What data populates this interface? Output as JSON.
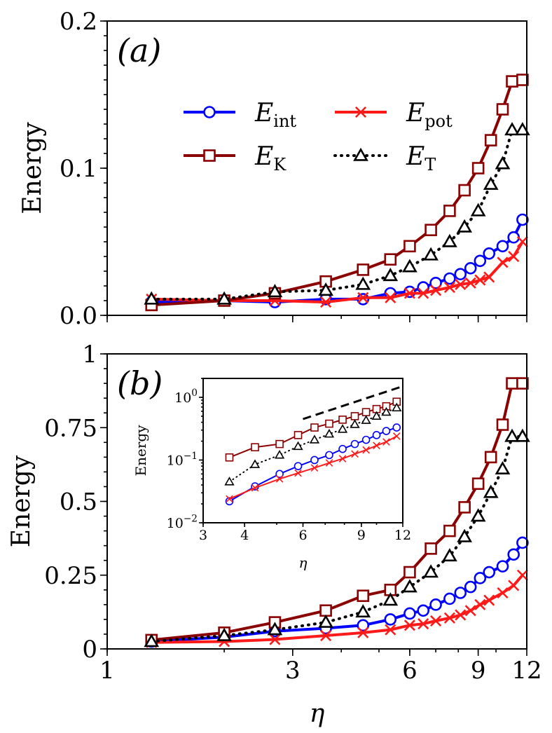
{
  "chart_data": [
    {
      "type": "line",
      "panel_label": "(a)",
      "title": "",
      "xlabel": "η",
      "ylabel": "Energy",
      "xscale": "log",
      "yscale": "linear",
      "xlim": [
        1,
        12
      ],
      "ylim": [
        0,
        0.2
      ],
      "yticks": [
        0.0,
        0.1,
        0.2
      ],
      "ytick_labels": [
        "0.0",
        "0.1",
        "0.2"
      ],
      "xticks": [
        1,
        3,
        6,
        9,
        12
      ],
      "xtick_labels": [],
      "legend_position": "upper-center",
      "series": [
        {
          "key": "eint",
          "name": "E",
          "sub": "int",
          "color": "#0000ff",
          "marker": "circle",
          "dash": "solid",
          "x": [
            1.3,
            2.0,
            2.7,
            3.65,
            4.55,
            5.35,
            6.0,
            6.5,
            7.0,
            7.6,
            8.1,
            8.6,
            9.1,
            9.6,
            10.4,
            11.1,
            11.7
          ],
          "values": [
            0.009,
            0.01,
            0.009,
            0.011,
            0.011,
            0.015,
            0.016,
            0.019,
            0.022,
            0.025,
            0.028,
            0.032,
            0.037,
            0.042,
            0.047,
            0.053,
            0.065
          ]
        },
        {
          "key": "epot",
          "name": "E",
          "sub": "pot",
          "color": "#ff1a1a",
          "marker": "x",
          "dash": "solid",
          "x": [
            1.3,
            2.0,
            2.7,
            3.65,
            4.55,
            5.35,
            6.0,
            6.5,
            7.0,
            7.6,
            8.1,
            8.6,
            9.1,
            9.6,
            10.4,
            11.1,
            11.7
          ],
          "values": [
            0.011,
            0.01,
            0.01,
            0.009,
            0.012,
            0.012,
            0.015,
            0.015,
            0.017,
            0.019,
            0.021,
            0.022,
            0.024,
            0.026,
            0.036,
            0.04,
            0.05
          ]
        },
        {
          "key": "ek",
          "name": "E",
          "sub": "K",
          "color": "#8b0000",
          "marker": "square",
          "dash": "solid",
          "x": [
            1.3,
            2.0,
            2.7,
            3.65,
            4.55,
            5.35,
            6.0,
            6.8,
            7.6,
            8.3,
            9.0,
            9.7,
            10.4,
            11.0,
            11.7
          ],
          "values": [
            0.007,
            0.01,
            0.015,
            0.023,
            0.031,
            0.038,
            0.047,
            0.058,
            0.071,
            0.085,
            0.1,
            0.119,
            0.14,
            0.159,
            0.16
          ]
        },
        {
          "key": "et",
          "name": "E",
          "sub": "T",
          "color": "#000000",
          "marker": "triangle",
          "dash": "dotted",
          "x": [
            1.3,
            2.0,
            2.7,
            3.65,
            4.55,
            5.35,
            6.0,
            6.8,
            7.6,
            8.3,
            9.0,
            9.7,
            10.4,
            11.0,
            11.7
          ],
          "values": [
            0.011,
            0.011,
            0.016,
            0.017,
            0.021,
            0.027,
            0.033,
            0.041,
            0.05,
            0.06,
            0.071,
            0.089,
            0.103,
            0.126,
            0.126
          ]
        }
      ]
    },
    {
      "type": "line",
      "panel_label": "(b)",
      "title": "",
      "xlabel": "η",
      "ylabel": "Energy",
      "xscale": "log",
      "yscale": "linear",
      "xlim": [
        1,
        12
      ],
      "ylim": [
        0,
        1
      ],
      "yticks": [
        0,
        0.25,
        0.5,
        0.75,
        1
      ],
      "ytick_labels": [
        "0",
        "0.25",
        "0.5",
        "0.75",
        "1"
      ],
      "xticks": [
        1,
        3,
        6,
        9,
        12
      ],
      "xtick_labels": [
        "1",
        "3",
        "6",
        "9",
        "12"
      ],
      "series": [
        {
          "key": "eint",
          "color": "#0000ff",
          "marker": "circle",
          "dash": "solid",
          "x": [
            1.3,
            2.0,
            2.7,
            3.65,
            4.55,
            5.35,
            6.0,
            6.5,
            7.0,
            7.6,
            8.1,
            8.6,
            9.1,
            9.6,
            10.4,
            11.1,
            11.7
          ],
          "values": [
            0.025,
            0.04,
            0.06,
            0.07,
            0.08,
            0.1,
            0.12,
            0.13,
            0.15,
            0.17,
            0.19,
            0.21,
            0.24,
            0.26,
            0.28,
            0.32,
            0.36
          ]
        },
        {
          "key": "epot",
          "color": "#ff1a1a",
          "marker": "x",
          "dash": "solid",
          "x": [
            1.3,
            2.0,
            2.7,
            3.65,
            4.55,
            5.35,
            6.0,
            6.5,
            7.0,
            7.6,
            8.1,
            8.6,
            9.1,
            9.6,
            10.4,
            11.1,
            11.7
          ],
          "values": [
            0.022,
            0.025,
            0.032,
            0.045,
            0.055,
            0.065,
            0.08,
            0.085,
            0.095,
            0.105,
            0.115,
            0.13,
            0.15,
            0.165,
            0.19,
            0.215,
            0.25
          ]
        },
        {
          "key": "ek",
          "color": "#8b0000",
          "marker": "square",
          "dash": "solid",
          "x": [
            1.3,
            2.0,
            2.7,
            3.65,
            4.55,
            5.35,
            6.0,
            6.8,
            7.6,
            8.3,
            9.0,
            9.7,
            10.4,
            11.0,
            11.7
          ],
          "values": [
            0.03,
            0.055,
            0.09,
            0.13,
            0.18,
            0.2,
            0.26,
            0.34,
            0.4,
            0.48,
            0.56,
            0.65,
            0.76,
            0.9,
            0.9
          ]
        },
        {
          "key": "et",
          "color": "#000000",
          "marker": "triangle",
          "dash": "dotted",
          "x": [
            1.3,
            2.0,
            2.7,
            3.65,
            4.55,
            5.35,
            6.0,
            6.8,
            7.6,
            8.3,
            9.0,
            9.7,
            10.4,
            11.0,
            11.7
          ],
          "values": [
            0.025,
            0.045,
            0.065,
            0.09,
            0.125,
            0.165,
            0.21,
            0.26,
            0.315,
            0.38,
            0.45,
            0.53,
            0.61,
            0.72,
            0.72
          ]
        }
      ],
      "inset": {
        "xlabel": "η",
        "ylabel": "Energy",
        "xscale": "log",
        "yscale": "log",
        "xlim": [
          3,
          12
        ],
        "ylim": [
          0.01,
          2
        ],
        "xticks": [
          3,
          4,
          6,
          9,
          12
        ],
        "xtick_labels": [
          "3",
          "4",
          "6",
          "9",
          "12"
        ],
        "yticks": [
          0.01,
          0.1,
          1
        ],
        "ytick_labels": [
          {
            "base": "10",
            "exp": "−2"
          },
          {
            "base": "10",
            "exp": "−1"
          },
          {
            "base": "10",
            "exp": "0"
          }
        ],
        "reference_line": {
          "style": "dashed",
          "x": [
            6,
            12
          ],
          "values": [
            0.45,
            1.5
          ]
        },
        "series": [
          {
            "key": "eint",
            "color": "#0000ff",
            "marker": "circle",
            "dash": "solid",
            "x": [
              3.6,
              4.3,
              5.1,
              5.8,
              6.5,
              7.2,
              7.9,
              8.6,
              9.3,
              10.0,
              10.7,
              11.5
            ],
            "values": [
              0.022,
              0.038,
              0.06,
              0.08,
              0.1,
              0.12,
              0.15,
              0.18,
              0.21,
              0.25,
              0.29,
              0.33
            ]
          },
          {
            "key": "epot",
            "color": "#ff1a1a",
            "marker": "x",
            "dash": "solid",
            "x": [
              3.6,
              4.3,
              5.1,
              5.8,
              6.5,
              7.2,
              7.9,
              8.6,
              9.3,
              10.0,
              10.7,
              11.5
            ],
            "values": [
              0.024,
              0.036,
              0.05,
              0.062,
              0.075,
              0.09,
              0.105,
              0.125,
              0.145,
              0.17,
              0.195,
              0.24
            ]
          },
          {
            "key": "ek",
            "color": "#8b0000",
            "marker": "square",
            "dash": "solid",
            "x": [
              3.6,
              4.3,
              5.1,
              5.8,
              6.5,
              7.2,
              7.9,
              8.6,
              9.3,
              10.0,
              10.7,
              11.5
            ],
            "values": [
              0.11,
              0.16,
              0.18,
              0.25,
              0.33,
              0.38,
              0.44,
              0.5,
              0.58,
              0.65,
              0.72,
              0.85
            ]
          },
          {
            "key": "et",
            "color": "#000000",
            "marker": "triangle",
            "dash": "dotted",
            "x": [
              3.6,
              4.3,
              5.1,
              5.8,
              6.5,
              7.2,
              7.9,
              8.6,
              9.3,
              10.0,
              10.7,
              11.5
            ],
            "values": [
              0.045,
              0.085,
              0.12,
              0.165,
              0.21,
              0.26,
              0.31,
              0.37,
              0.43,
              0.5,
              0.58,
              0.68
            ]
          }
        ]
      }
    }
  ]
}
